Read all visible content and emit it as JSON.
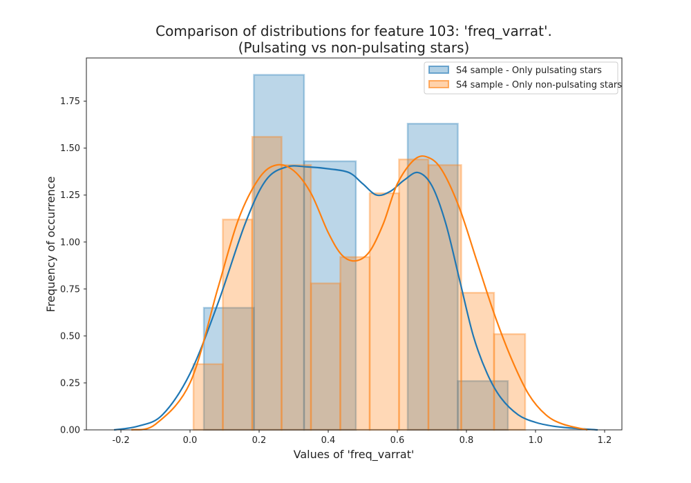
{
  "chart_data": {
    "type": "histogram",
    "title_line1": "Comparison of distributions for feature 103: 'freq_varrat'.",
    "title_line2": "(Pulsating vs non-pulsating stars)",
    "xlabel": "Values of 'freq_varrat'",
    "ylabel": "Frequency of occurrence",
    "xlim": [
      -0.3,
      1.25
    ],
    "ylim": [
      0,
      1.98
    ],
    "x_ticks": [
      "-0.2",
      "0.0",
      "0.2",
      "0.4",
      "0.6",
      "0.8",
      "1.0",
      "1.2"
    ],
    "y_ticks": [
      "0.00",
      "0.25",
      "0.50",
      "0.75",
      "1.00",
      "1.25",
      "1.50",
      "1.75"
    ],
    "grid": false,
    "legend_position": "top-right",
    "series": [
      {
        "name": "S4 sample - Only pulsating stars",
        "fill": "#1f77b4",
        "fill_opacity": 0.3,
        "line": "#1f77b4",
        "hist": [
          {
            "x0": 0.04,
            "x1": 0.185,
            "y": 0.65
          },
          {
            "x0": 0.185,
            "x1": 0.33,
            "y": 1.89
          },
          {
            "x0": 0.33,
            "x1": 0.48,
            "y": 1.43
          },
          {
            "x0": 0.48,
            "x1": 0.63,
            "y": 0.0
          },
          {
            "x0": 0.63,
            "x1": 0.775,
            "y": 1.63
          },
          {
            "x0": 0.775,
            "x1": 0.92,
            "y": 0.26
          }
        ],
        "kde": [
          [
            -0.22,
            0.0
          ],
          [
            -0.15,
            0.02
          ],
          [
            -0.08,
            0.08
          ],
          [
            0.0,
            0.3
          ],
          [
            0.08,
            0.67
          ],
          [
            0.16,
            1.1
          ],
          [
            0.22,
            1.33
          ],
          [
            0.28,
            1.4
          ],
          [
            0.34,
            1.4
          ],
          [
            0.4,
            1.39
          ],
          [
            0.46,
            1.37
          ],
          [
            0.5,
            1.31
          ],
          [
            0.54,
            1.25
          ],
          [
            0.58,
            1.27
          ],
          [
            0.62,
            1.33
          ],
          [
            0.66,
            1.37
          ],
          [
            0.7,
            1.3
          ],
          [
            0.74,
            1.1
          ],
          [
            0.78,
            0.8
          ],
          [
            0.82,
            0.5
          ],
          [
            0.86,
            0.3
          ],
          [
            0.9,
            0.17
          ],
          [
            0.95,
            0.08
          ],
          [
            1.0,
            0.04
          ],
          [
            1.05,
            0.02
          ],
          [
            1.1,
            0.01
          ],
          [
            1.18,
            0.0
          ]
        ]
      },
      {
        "name": "S4 sample - Only non-pulsating stars",
        "fill": "#ff7f0e",
        "fill_opacity": 0.3,
        "line": "#ff7f0e",
        "hist": [
          {
            "x0": 0.01,
            "x1": 0.095,
            "y": 0.35
          },
          {
            "x0": 0.095,
            "x1": 0.18,
            "y": 1.12
          },
          {
            "x0": 0.18,
            "x1": 0.265,
            "y": 1.56
          },
          {
            "x0": 0.265,
            "x1": 0.35,
            "y": 1.41
          },
          {
            "x0": 0.35,
            "x1": 0.435,
            "y": 0.78
          },
          {
            "x0": 0.435,
            "x1": 0.52,
            "y": 0.92
          },
          {
            "x0": 0.52,
            "x1": 0.605,
            "y": 1.26
          },
          {
            "x0": 0.605,
            "x1": 0.69,
            "y": 1.44
          },
          {
            "x0": 0.69,
            "x1": 0.785,
            "y": 1.41
          },
          {
            "x0": 0.785,
            "x1": 0.88,
            "y": 0.73
          },
          {
            "x0": 0.88,
            "x1": 0.97,
            "y": 0.51
          }
        ],
        "kde": [
          [
            -0.17,
            0.0
          ],
          [
            -0.1,
            0.03
          ],
          [
            0.0,
            0.25
          ],
          [
            0.08,
            0.75
          ],
          [
            0.14,
            1.12
          ],
          [
            0.2,
            1.34
          ],
          [
            0.25,
            1.41
          ],
          [
            0.3,
            1.38
          ],
          [
            0.35,
            1.26
          ],
          [
            0.4,
            1.05
          ],
          [
            0.44,
            0.93
          ],
          [
            0.48,
            0.9
          ],
          [
            0.52,
            0.95
          ],
          [
            0.56,
            1.1
          ],
          [
            0.6,
            1.31
          ],
          [
            0.65,
            1.44
          ],
          [
            0.69,
            1.45
          ],
          [
            0.73,
            1.38
          ],
          [
            0.78,
            1.18
          ],
          [
            0.83,
            0.9
          ],
          [
            0.88,
            0.62
          ],
          [
            0.93,
            0.38
          ],
          [
            0.98,
            0.19
          ],
          [
            1.03,
            0.08
          ],
          [
            1.08,
            0.03
          ],
          [
            1.15,
            0.0
          ]
        ]
      }
    ]
  }
}
